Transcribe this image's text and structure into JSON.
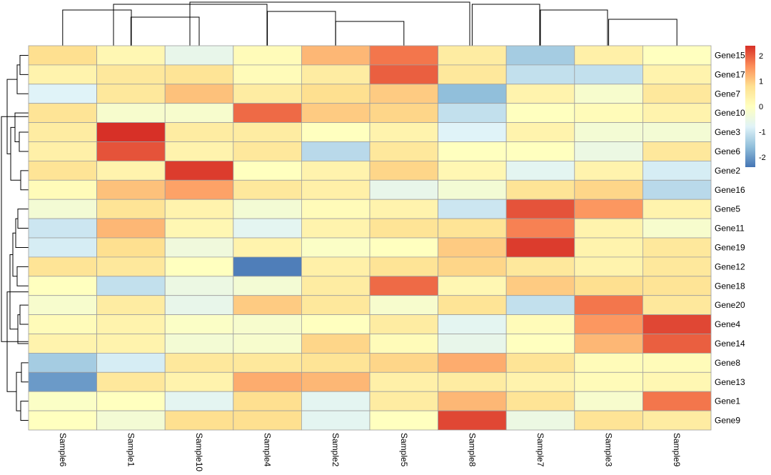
{
  "chart_data": {
    "type": "heatmap",
    "title": "",
    "columns": [
      "Sample6",
      "Sample1",
      "Sample10",
      "Sample4",
      "Sample2",
      "Sample5",
      "Sample8",
      "Sample7",
      "Sample3",
      "Sample9"
    ],
    "rows": [
      "Gene15",
      "Gene17",
      "Gene7",
      "Gene10",
      "Gene3",
      "Gene6",
      "Gene2",
      "Gene16",
      "Gene5",
      "Gene11",
      "Gene19",
      "Gene12",
      "Gene18",
      "Gene20",
      "Gene4",
      "Gene14",
      "Gene8",
      "Gene13",
      "Gene1",
      "Gene9"
    ],
    "values": [
      [
        0.8,
        0.2,
        -0.6,
        0.1,
        1.2,
        1.8,
        0.5,
        -1.4,
        0.4,
        0.0
      ],
      [
        0.3,
        0.6,
        0.7,
        0.1,
        0.5,
        2.0,
        0.6,
        -1.1,
        -1.1,
        0.3
      ],
      [
        -0.8,
        0.6,
        1.1,
        0.5,
        0.8,
        1.0,
        -1.6,
        0.3,
        -0.2,
        0.6
      ],
      [
        0.7,
        -0.2,
        -0.2,
        1.9,
        1.0,
        0.9,
        -1.1,
        0.0,
        0.1,
        0.3
      ],
      [
        0.5,
        2.4,
        0.5,
        0.5,
        0.0,
        0.3,
        -0.8,
        0.3,
        -0.3,
        -0.3
      ],
      [
        0.4,
        2.1,
        0.3,
        0.6,
        -1.2,
        0.6,
        0.0,
        0.0,
        -0.5,
        0.6
      ],
      [
        0.7,
        0.3,
        2.3,
        0.0,
        0.3,
        0.9,
        0.2,
        -0.7,
        0.3,
        -0.9
      ],
      [
        0.1,
        1.1,
        1.4,
        0.6,
        0.4,
        -0.6,
        -0.3,
        0.7,
        0.9,
        -1.2
      ],
      [
        -0.3,
        0.7,
        0.3,
        -0.3,
        0.1,
        0.3,
        -1.0,
        2.1,
        1.5,
        0.3
      ],
      [
        -1.0,
        1.2,
        0.2,
        -0.7,
        0.3,
        0.7,
        0.7,
        1.7,
        0.3,
        -0.2
      ],
      [
        -0.9,
        0.8,
        -0.4,
        0.3,
        -0.1,
        0.0,
        1.0,
        2.3,
        0.3,
        0.6
      ],
      [
        0.7,
        0.6,
        0.0,
        -2.3,
        0.4,
        0.7,
        0.9,
        0.6,
        0.3,
        0.6
      ],
      [
        0.0,
        -1.1,
        -0.5,
        -0.3,
        0.5,
        1.9,
        0.2,
        1.0,
        0.8,
        0.7
      ],
      [
        -0.2,
        0.5,
        -0.6,
        1.0,
        0.6,
        -0.2,
        0.7,
        -1.1,
        1.8,
        0.6
      ],
      [
        0.1,
        0.3,
        -0.1,
        -0.2,
        0.0,
        0.5,
        -0.7,
        0.1,
        1.5,
        2.2
      ],
      [
        0.3,
        0.3,
        -0.3,
        -0.2,
        0.9,
        0.1,
        -0.6,
        0.0,
        1.2,
        2.0
      ],
      [
        -1.4,
        -0.9,
        0.6,
        0.6,
        0.7,
        0.9,
        1.3,
        0.7,
        0.1,
        0.1
      ],
      [
        -2.0,
        0.6,
        0.3,
        1.3,
        1.2,
        0.4,
        0.5,
        0.3,
        0.1,
        0.2
      ],
      [
        -0.1,
        0.0,
        -0.7,
        0.8,
        -0.7,
        0.5,
        1.2,
        0.7,
        -0.2,
        1.8
      ],
      [
        0.0,
        -0.3,
        0.8,
        0.8,
        -0.7,
        0.0,
        2.2,
        -0.5,
        0.7,
        0.5
      ]
    ],
    "legend": {
      "ticks": [
        2,
        1,
        0,
        -1,
        -2
      ],
      "range": [
        -2.4,
        2.4
      ],
      "colors": [
        "#4575b4",
        "#91bfdb",
        "#e0f3f8",
        "#ffffbf",
        "#fee090",
        "#fc8d59",
        "#d73027"
      ]
    }
  }
}
